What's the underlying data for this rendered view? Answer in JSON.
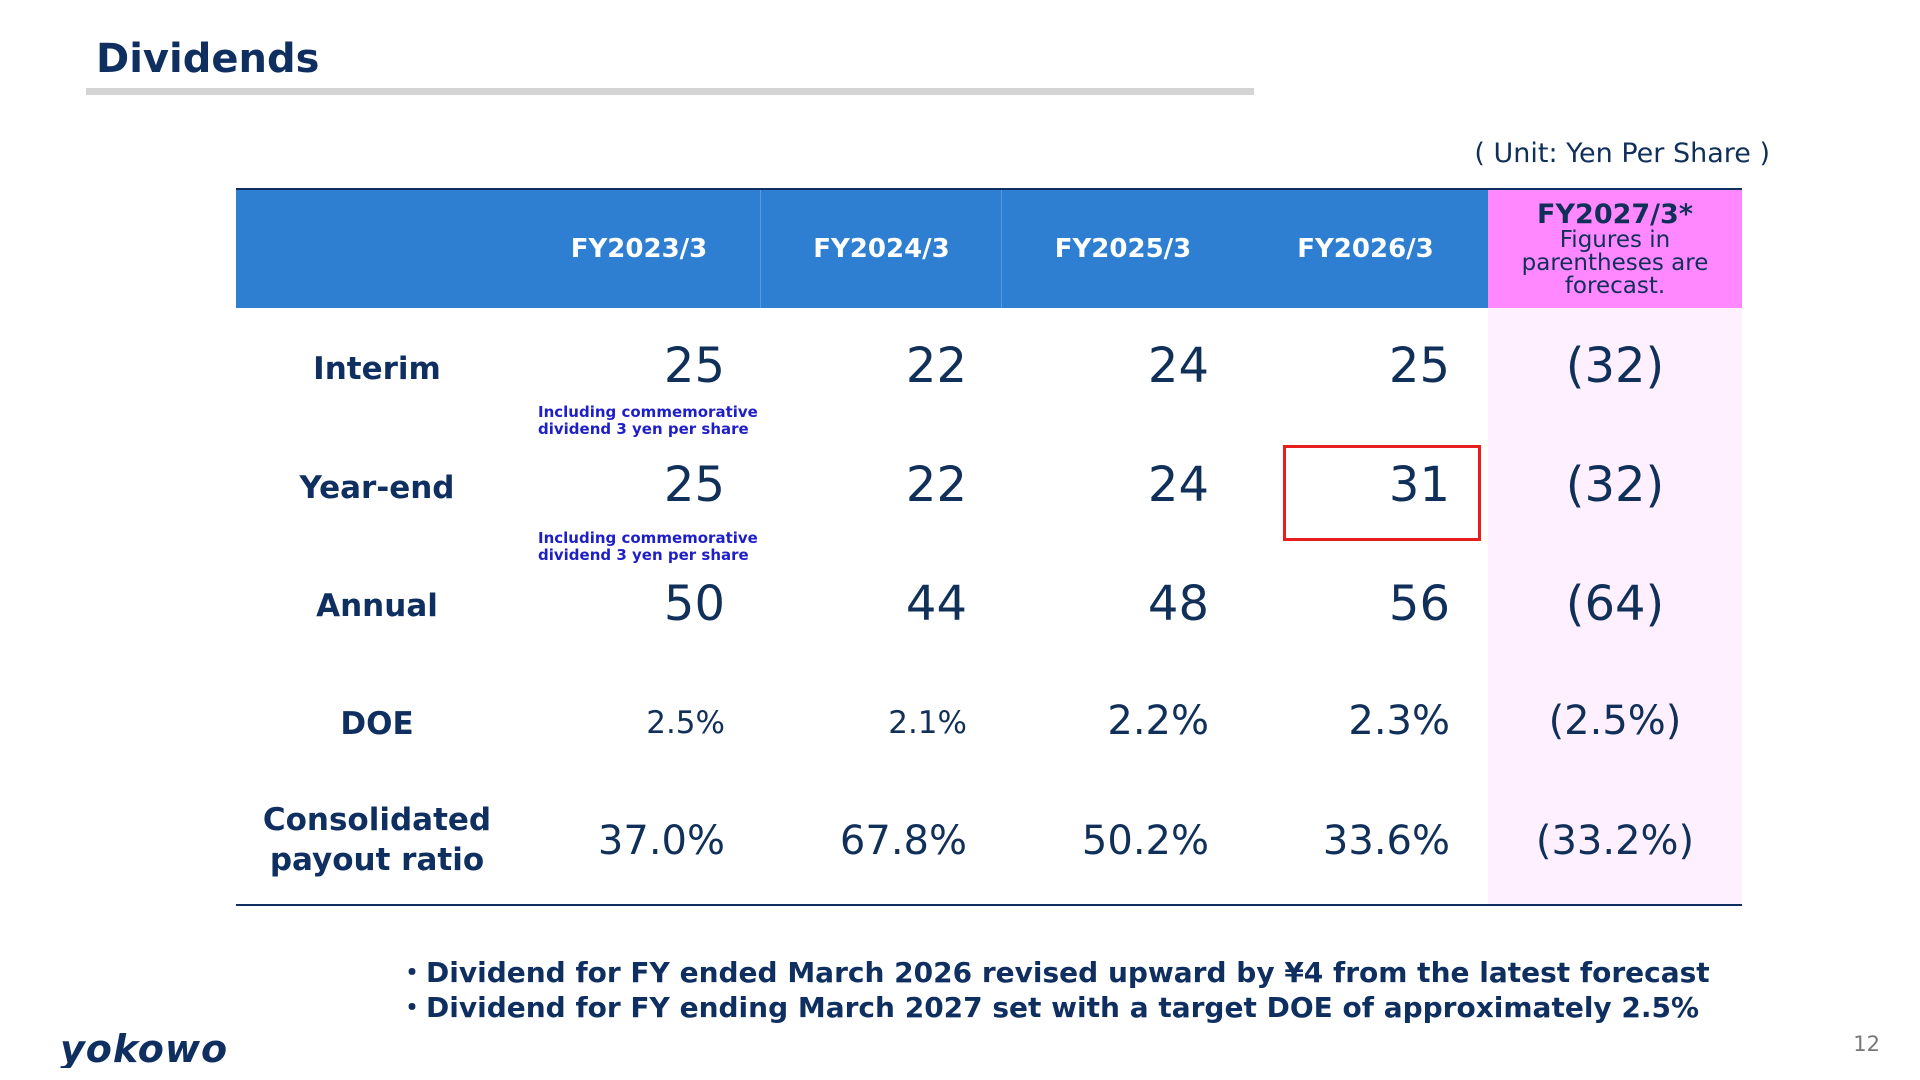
{
  "page": {
    "title": "Dividends",
    "unit": "( Unit: Yen Per Share )",
    "page_number": "12",
    "logo_text": "yokowo"
  },
  "table": {
    "headers": [
      "FY2023/3",
      "FY2024/3",
      "FY2025/3",
      "FY2026/3"
    ],
    "forecast_header": "FY2027/3*",
    "forecast_note": "Figures in parentheses are forecast.",
    "rows": [
      {
        "label": "Interim",
        "values": [
          "25",
          "22",
          "24",
          "25"
        ],
        "forecast": "(32)"
      },
      {
        "label": "Year-end",
        "values": [
          "25",
          "22",
          "24",
          "31"
        ],
        "forecast": "(32)"
      },
      {
        "label": "Annual",
        "values": [
          "50",
          "44",
          "48",
          "56"
        ],
        "forecast": "(64)"
      },
      {
        "label": "DOE",
        "values": [
          "2.5%",
          "2.1%",
          "2.2%",
          "2.3%"
        ],
        "forecast": "(2.5%)"
      },
      {
        "label_line1": "Consolidated",
        "label_line2": "payout ratio",
        "values": [
          "37.0%",
          "67.8%",
          "50.2%",
          "33.6%"
        ],
        "forecast": "(33.2%)"
      }
    ],
    "commemorative_note_line1": "Including commemorative",
    "commemorative_note_line2": "dividend 3 yen per share",
    "highlighted_cell": "FY2026/3 Year-end"
  },
  "notes": [
    "・Dividend for FY ended March 2026 revised upward by ¥4 from the latest forecast",
    "・Dividend for FY ending March 2027 set with a target DOE of approximately 2.5%"
  ],
  "colors": {
    "header_blue": "#2e7fd2",
    "forecast_header_pink": "#ff88ff",
    "forecast_column_bg": "#fff0ff",
    "highlight_red": "#e61e1e",
    "navy": "#0f2f61"
  }
}
